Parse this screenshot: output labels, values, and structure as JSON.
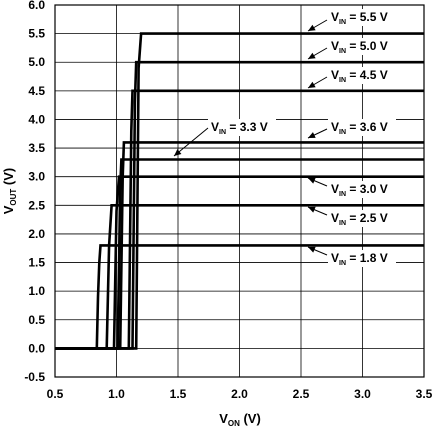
{
  "chart_data": {
    "type": "line",
    "xlabel": {
      "main": "V",
      "sub": "ON",
      "unit": " (V)"
    },
    "ylabel": {
      "main": "V",
      "sub": "OUT",
      "unit": " (V)"
    },
    "xlim": [
      0.5,
      3.5
    ],
    "ylim": [
      -0.5,
      6.0
    ],
    "x_ticks": [
      "0.5",
      "1.0",
      "1.5",
      "2.0",
      "2.5",
      "3.0",
      "3.5"
    ],
    "y_ticks": [
      "-0.5",
      "0.0",
      "0.5",
      "1.0",
      "1.5",
      "2.0",
      "2.5",
      "3.0",
      "3.5",
      "4.0",
      "4.5",
      "5.0",
      "5.5",
      "6.0"
    ],
    "grid": true,
    "series": [
      {
        "name": "VIN = 1.8 V",
        "label_prefix": "V",
        "label_sub": "IN",
        "label_value": " = 1.8 V",
        "x": [
          0.5,
          0.84,
          0.85,
          0.86,
          0.87,
          3.5
        ],
        "y": [
          0.0,
          0.0,
          0.9,
          1.5,
          1.8,
          1.8
        ]
      },
      {
        "name": "VIN = 2.5 V",
        "label_prefix": "V",
        "label_sub": "IN",
        "label_value": " = 2.5 V",
        "x": [
          0.5,
          0.92,
          0.94,
          0.96,
          3.5
        ],
        "y": [
          0.0,
          0.0,
          1.8,
          2.5,
          2.5
        ]
      },
      {
        "name": "VIN = 3.0 V",
        "label_prefix": "V",
        "label_sub": "IN",
        "label_value": " = 3.0 V",
        "x": [
          0.5,
          0.98,
          1.0,
          1.02,
          3.5
        ],
        "y": [
          0.0,
          0.0,
          2.4,
          3.0,
          3.0
        ]
      },
      {
        "name": "VIN = 3.3 V",
        "label_prefix": "V",
        "label_sub": "IN",
        "label_value": " = 3.3 V",
        "x": [
          0.5,
          1.01,
          1.03,
          1.04,
          3.5
        ],
        "y": [
          0.0,
          0.0,
          2.8,
          3.3,
          3.3
        ]
      },
      {
        "name": "VIN = 3.6 V",
        "label_prefix": "V",
        "label_sub": "IN",
        "label_value": " = 3.6 V",
        "x": [
          0.5,
          1.03,
          1.05,
          1.06,
          3.5
        ],
        "y": [
          0.0,
          0.0,
          3.0,
          3.6,
          3.6
        ]
      },
      {
        "name": "VIN = 4.5 V",
        "label_prefix": "V",
        "label_sub": "IN",
        "label_value": " = 4.5 V",
        "x": [
          0.5,
          1.1,
          1.12,
          1.13,
          3.5
        ],
        "y": [
          0.0,
          0.0,
          3.8,
          4.5,
          4.5
        ]
      },
      {
        "name": "VIN = 5.0 V",
        "label_prefix": "V",
        "label_sub": "IN",
        "label_value": " = 5.0 V",
        "x": [
          0.5,
          1.13,
          1.15,
          1.16,
          3.5
        ],
        "y": [
          0.0,
          0.0,
          4.3,
          5.0,
          5.0
        ]
      },
      {
        "name": "VIN = 5.5 V",
        "label_prefix": "V",
        "label_sub": "IN",
        "label_value": " = 5.5 V",
        "x": [
          0.5,
          1.16,
          1.18,
          1.2,
          3.5
        ],
        "y": [
          0.0,
          0.0,
          4.9,
          5.5,
          5.5
        ]
      }
    ]
  }
}
